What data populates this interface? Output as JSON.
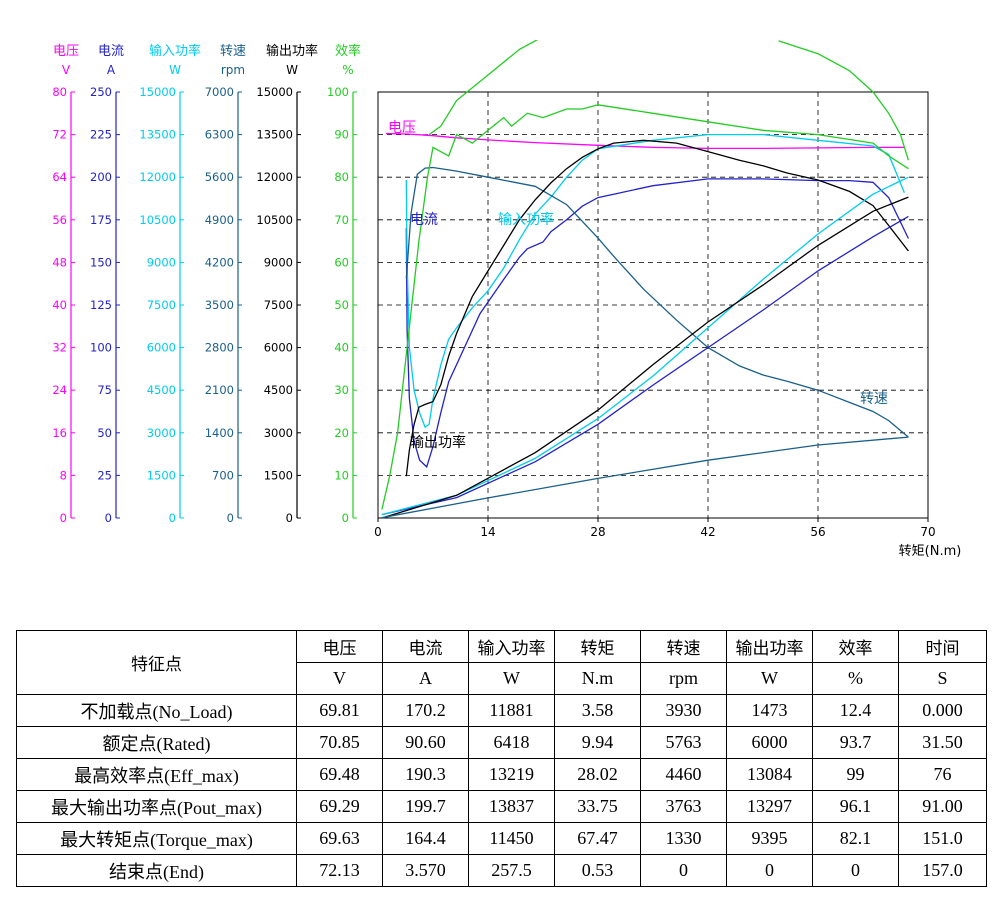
{
  "chart_data": {
    "type": "line",
    "xlabel": "转矩(N.m)",
    "xlim": [
      0,
      70
    ],
    "x_ticks": [
      "0",
      "14",
      "28",
      "42",
      "56",
      "70"
    ],
    "axes": [
      {
        "name": "电压",
        "unit": "V",
        "color": "#ff00ff",
        "ticks": [
          "0",
          "8",
          "16",
          "24",
          "32",
          "40",
          "48",
          "56",
          "64",
          "72",
          "80"
        ]
      },
      {
        "name": "电流",
        "unit": "A",
        "color": "#2222cc",
        "ticks": [
          "0",
          "25",
          "50",
          "75",
          "100",
          "125",
          "150",
          "175",
          "200",
          "225",
          "250"
        ]
      },
      {
        "name": "输入功率",
        "unit": "W",
        "color": "#00ccee",
        "ticks": [
          "0",
          "1500",
          "3000",
          "4500",
          "6000",
          "7500",
          "9000",
          "10500",
          "12000",
          "13500",
          "15000"
        ]
      },
      {
        "name": "转速",
        "unit": "rpm",
        "color": "#1a5f8a",
        "ticks": [
          "0",
          "700",
          "1400",
          "2100",
          "2800",
          "3500",
          "4200",
          "4900",
          "5600",
          "6300",
          "7000"
        ]
      },
      {
        "name": "输出功率",
        "unit": "W",
        "color": "#000000",
        "ticks": [
          "0",
          "1500",
          "3000",
          "4500",
          "6000",
          "7500",
          "9000",
          "10500",
          "12000",
          "13500",
          "15000"
        ]
      },
      {
        "name": "效率",
        "unit": "%",
        "color": "#22cc22",
        "ticks": [
          "0",
          "10",
          "20",
          "30",
          "40",
          "50",
          "60",
          "70",
          "80",
          "90",
          "100"
        ]
      }
    ],
    "grid": true,
    "series": [
      {
        "name": "电压",
        "color": "#ff00ff",
        "axis": 0,
        "label": "电压",
        "points": [
          [
            1,
            72.2
          ],
          [
            4,
            72.1
          ],
          [
            7,
            71.8
          ],
          [
            10,
            71.4
          ],
          [
            14,
            71.0
          ],
          [
            20,
            70.5
          ],
          [
            28,
            70.0
          ],
          [
            35,
            69.6
          ],
          [
            42,
            69.4
          ],
          [
            49,
            69.4
          ],
          [
            56,
            69.5
          ],
          [
            63,
            69.6
          ],
          [
            67,
            69.6
          ]
        ]
      },
      {
        "name": "电流",
        "color": "#2222cc",
        "axis": 1,
        "label": "电流",
        "points": [
          [
            3.6,
            170
          ],
          [
            3.7,
            110
          ],
          [
            4,
            70
          ],
          [
            4.6,
            45
          ],
          [
            5.3,
            34
          ],
          [
            6.2,
            30
          ],
          [
            7,
            42
          ],
          [
            8,
            62
          ],
          [
            9,
            80
          ],
          [
            11,
            100
          ],
          [
            13,
            120
          ],
          [
            16,
            140
          ],
          [
            18,
            153
          ],
          [
            19,
            158
          ],
          [
            21,
            162
          ],
          [
            22,
            168
          ],
          [
            24,
            175
          ],
          [
            26,
            183
          ],
          [
            28,
            188
          ],
          [
            30,
            190
          ],
          [
            35,
            195
          ],
          [
            42,
            199
          ],
          [
            49,
            199
          ],
          [
            56,
            198
          ],
          [
            60,
            198
          ],
          [
            63,
            197
          ],
          [
            65,
            188
          ],
          [
            67.5,
            164
          ]
        ]
      },
      {
        "name": "输入功率",
        "color": "#00ccee",
        "axis": 2,
        "label": "输入功率",
        "points": [
          [
            3.6,
            11900
          ],
          [
            3.7,
            9000
          ],
          [
            4,
            6000
          ],
          [
            4.6,
            4500
          ],
          [
            5.3,
            3700
          ],
          [
            6,
            3200
          ],
          [
            6.5,
            3300
          ],
          [
            7,
            4200
          ],
          [
            8,
            5400
          ],
          [
            9,
            6300
          ],
          [
            10,
            6700
          ],
          [
            12,
            7400
          ],
          [
            14,
            8000
          ],
          [
            16,
            8800
          ],
          [
            18,
            9800
          ],
          [
            20,
            10700
          ],
          [
            22,
            11300
          ],
          [
            24,
            12000
          ],
          [
            26,
            12600
          ],
          [
            28,
            13000
          ],
          [
            35,
            13300
          ],
          [
            42,
            13500
          ],
          [
            49,
            13500
          ],
          [
            56,
            13300
          ],
          [
            63,
            13100
          ],
          [
            65,
            12800
          ],
          [
            67,
            11450
          ]
        ]
      },
      {
        "name": "转速",
        "color": "#1a5f8a",
        "axis": 3,
        "label": "转速",
        "points": [
          [
            3.6,
            3930
          ],
          [
            4.2,
            5000
          ],
          [
            5,
            5650
          ],
          [
            6,
            5750
          ],
          [
            7,
            5760
          ],
          [
            10,
            5700
          ],
          [
            14,
            5600
          ],
          [
            20,
            5450
          ],
          [
            24,
            5150
          ],
          [
            28,
            4600
          ],
          [
            30,
            4300
          ],
          [
            33.8,
            3760
          ],
          [
            38,
            3250
          ],
          [
            42,
            2800
          ],
          [
            46,
            2500
          ],
          [
            49,
            2350
          ],
          [
            52,
            2250
          ],
          [
            56,
            2100
          ],
          [
            60,
            1900
          ],
          [
            63,
            1750
          ],
          [
            65,
            1600
          ],
          [
            67.5,
            1330
          ]
        ]
      },
      {
        "name": "输出功率",
        "color": "#000000",
        "axis": 4,
        "label": "输出功率",
        "points": [
          [
            3.6,
            1473
          ],
          [
            4,
            2400
          ],
          [
            4.6,
            3300
          ],
          [
            5.2,
            3900
          ],
          [
            6,
            4000
          ],
          [
            7,
            4100
          ],
          [
            8,
            4700
          ],
          [
            9,
            5700
          ],
          [
            10,
            6500
          ],
          [
            12,
            7800
          ],
          [
            14,
            8700
          ],
          [
            16,
            9600
          ],
          [
            18,
            10500
          ],
          [
            20,
            11200
          ],
          [
            22,
            11800
          ],
          [
            24,
            12300
          ],
          [
            26,
            12700
          ],
          [
            28,
            13000
          ],
          [
            30,
            13200
          ],
          [
            33.8,
            13300
          ],
          [
            38,
            13200
          ],
          [
            42,
            12900
          ],
          [
            46,
            12600
          ],
          [
            49,
            12400
          ],
          [
            52,
            12150
          ],
          [
            56,
            11900
          ],
          [
            60,
            11500
          ],
          [
            63,
            11000
          ],
          [
            65,
            10300
          ],
          [
            67.5,
            9400
          ]
        ]
      },
      {
        "name": "效率",
        "color": "#22cc22",
        "axis": 5,
        "label": "",
        "points": [
          [
            0.5,
            2
          ],
          [
            1.5,
            10
          ],
          [
            2.5,
            20
          ],
          [
            3.4,
            35
          ],
          [
            4.3,
            50
          ],
          [
            5.2,
            65
          ],
          [
            6.3,
            80
          ],
          [
            7,
            87
          ],
          [
            9,
            85
          ],
          [
            10,
            90
          ],
          [
            12,
            88
          ],
          [
            14,
            91
          ],
          [
            16,
            94
          ],
          [
            17,
            92
          ],
          [
            19,
            95
          ],
          [
            21,
            94
          ],
          [
            24,
            96
          ],
          [
            26,
            96
          ],
          [
            28,
            97
          ],
          [
            35,
            95
          ],
          [
            42,
            93
          ],
          [
            49,
            91
          ],
          [
            56,
            90
          ],
          [
            63,
            88
          ],
          [
            65,
            85
          ],
          [
            67.5,
            82
          ]
        ]
      },
      {
        "name": "效率-upper",
        "color": "#22cc22",
        "axis": 5,
        "label": "",
        "points": [
          [
            6.5,
            90
          ],
          [
            8,
            92
          ],
          [
            10,
            98
          ],
          [
            14,
            104
          ],
          [
            18,
            110
          ],
          [
            22,
            114
          ],
          [
            26,
            117
          ],
          [
            29,
            119
          ]
        ]
      },
      {
        "name": "效率-right",
        "color": "#22cc22",
        "axis": 5,
        "label": "",
        "points": [
          [
            51,
            112
          ],
          [
            56,
            109
          ],
          [
            60,
            105
          ],
          [
            63,
            100
          ],
          [
            65,
            95
          ],
          [
            66.5,
            90
          ],
          [
            67.5,
            84
          ]
        ]
      },
      {
        "name": "电流-linear",
        "color": "#2222cc",
        "axis": 1,
        "label": "",
        "points": [
          [
            0.5,
            2
          ],
          [
            10,
            12
          ],
          [
            20,
            33
          ],
          [
            28,
            55
          ],
          [
            35,
            78
          ],
          [
            42,
            100
          ],
          [
            49,
            122
          ],
          [
            56,
            145
          ],
          [
            63,
            165
          ],
          [
            67.5,
            177
          ]
        ]
      },
      {
        "name": "输入功率-linear",
        "color": "#00ccee",
        "axis": 2,
        "label": "",
        "points": [
          [
            0.5,
            120
          ],
          [
            10,
            800
          ],
          [
            20,
            2100
          ],
          [
            28,
            3500
          ],
          [
            35,
            5000
          ],
          [
            42,
            6700
          ],
          [
            49,
            8400
          ],
          [
            56,
            10000
          ],
          [
            63,
            11400
          ],
          [
            67.5,
            12000
          ]
        ]
      },
      {
        "name": "输出功率-linear",
        "color": "#000000",
        "axis": 4,
        "label": "",
        "points": [
          [
            0.5,
            0
          ],
          [
            10,
            800
          ],
          [
            20,
            2300
          ],
          [
            28,
            3800
          ],
          [
            35,
            5400
          ],
          [
            42,
            6900
          ],
          [
            49,
            8200
          ],
          [
            56,
            9600
          ],
          [
            63,
            10800
          ],
          [
            67.5,
            11300
          ]
        ]
      },
      {
        "name": "转速-linear",
        "color": "#1a5f8a",
        "axis": 3,
        "label": "",
        "points": [
          [
            0.5,
            5
          ],
          [
            14,
            330
          ],
          [
            28,
            650
          ],
          [
            42,
            950
          ],
          [
            56,
            1200
          ],
          [
            67.5,
            1330
          ]
        ]
      }
    ]
  },
  "table": {
    "header_row1": [
      "特征点",
      "电压",
      "电流",
      "输入功率",
      "转矩",
      "转速",
      "输出功率",
      "效率",
      "时间"
    ],
    "header_row2": [
      "V",
      "A",
      "W",
      "N.m",
      "rpm",
      "W",
      "%",
      "S"
    ],
    "rows": [
      [
        "不加载点(No_Load)",
        "69.81",
        "170.2",
        "11881",
        "3.58",
        "3930",
        "1473",
        "12.4",
        "0.000"
      ],
      [
        "额定点(Rated)",
        "70.85",
        "90.60",
        "6418",
        "9.94",
        "5763",
        "6000",
        "93.7",
        "31.50"
      ],
      [
        "最高效率点(Eff_max)",
        "69.48",
        "190.3",
        "13219",
        "28.02",
        "4460",
        "13084",
        "99",
        "76"
      ],
      [
        "最大输出功率点(Pout_max)",
        "69.29",
        "199.7",
        "13837",
        "33.75",
        "3763",
        "13297",
        "96.1",
        "91.00"
      ],
      [
        "最大转矩点(Torque_max)",
        "69.63",
        "164.4",
        "11450",
        "67.47",
        "1330",
        "9395",
        "82.1",
        "151.0"
      ],
      [
        "结束点(End)",
        "72.13",
        "3.570",
        "257.5",
        "0.53",
        "0",
        "0",
        "0",
        "157.0"
      ]
    ]
  }
}
